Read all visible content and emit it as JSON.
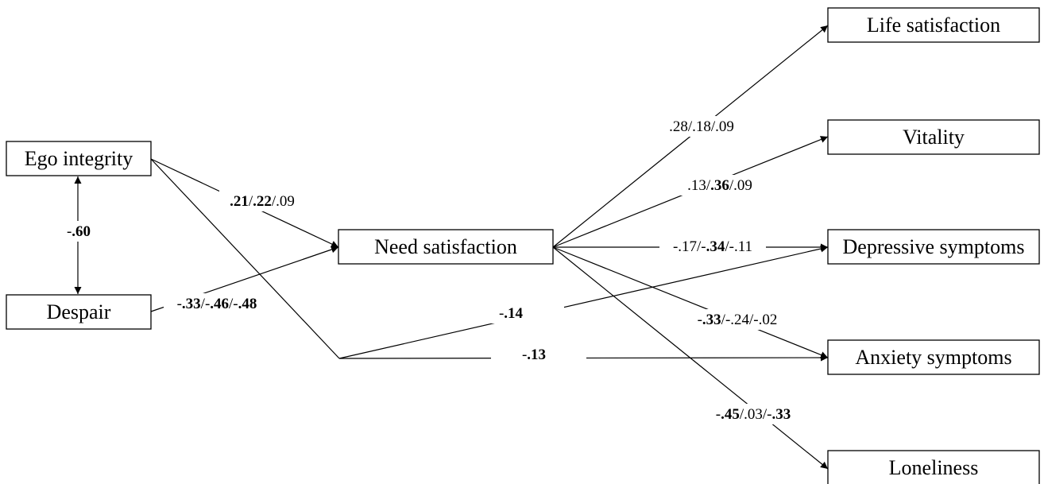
{
  "nodes": {
    "ego_integrity": "Ego integrity",
    "despair": "Despair",
    "need_satisfaction": "Need satisfaction",
    "life_satisfaction": "Life satisfaction",
    "vitality": "Vitality",
    "depressive_symptoms": "Depressive symptoms",
    "anxiety_symptoms": "Anxiety symptoms",
    "loneliness": "Loneliness"
  },
  "coefficients": {
    "ego_despair": [
      {
        "t": "-",
        "b": false
      },
      {
        "t": ".60",
        "b": true
      }
    ],
    "ego_need": [
      {
        "t": ".21",
        "b": true
      },
      {
        "t": "/",
        "b": false
      },
      {
        "t": ".22",
        "b": true
      },
      {
        "t": "/.09",
        "b": false
      }
    ],
    "despair_need": [
      {
        "t": "-",
        "b": false
      },
      {
        "t": ".33",
        "b": true
      },
      {
        "t": "/-",
        "b": false
      },
      {
        "t": ".46",
        "b": true
      },
      {
        "t": "/-",
        "b": false
      },
      {
        "t": ".48",
        "b": true
      }
    ],
    "need_life": [
      {
        "t": ".28/.18/.09",
        "b": false
      }
    ],
    "need_vitality": [
      {
        "t": ".13/",
        "b": false
      },
      {
        "t": ".36",
        "b": true
      },
      {
        "t": "/.09",
        "b": false
      }
    ],
    "need_depressive": [
      {
        "t": "-.17/-",
        "b": false
      },
      {
        "t": ".34",
        "b": true
      },
      {
        "t": "/-.11",
        "b": false
      }
    ],
    "need_anxiety": [
      {
        "t": "-",
        "b": false
      },
      {
        "t": ".33",
        "b": true
      },
      {
        "t": "/-.24/-.02",
        "b": false
      }
    ],
    "need_loneliness": [
      {
        "t": "-",
        "b": false
      },
      {
        "t": ".45",
        "b": true
      },
      {
        "t": "/.03/-",
        "b": false
      },
      {
        "t": ".33",
        "b": true
      }
    ],
    "ego_depressive": [
      {
        "t": "-",
        "b": false
      },
      {
        "t": ".14",
        "b": true
      }
    ],
    "ego_anxiety": [
      {
        "t": "-",
        "b": false
      },
      {
        "t": ".13",
        "b": true
      }
    ]
  }
}
